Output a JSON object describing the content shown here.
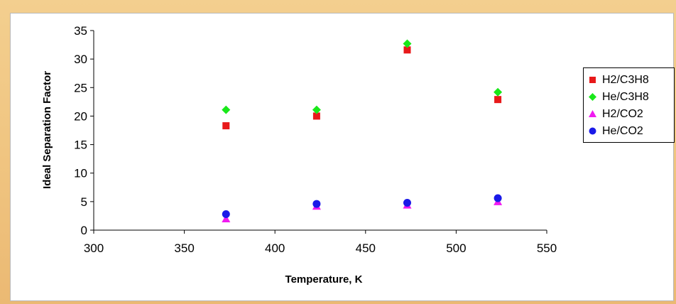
{
  "chart_data": {
    "type": "scatter",
    "title": "",
    "xlabel": "Temperature, K",
    "ylabel": "Ideal Separation Factor",
    "xlim": [
      300,
      550
    ],
    "ylim": [
      0,
      35
    ],
    "x_ticks": [
      "300",
      "350",
      "400",
      "450",
      "500",
      "550"
    ],
    "y_ticks": [
      "0",
      "5",
      "10",
      "15",
      "20",
      "25",
      "30",
      "35"
    ],
    "x_tick_values": [
      300,
      350,
      400,
      450,
      500,
      550
    ],
    "y_tick_values": [
      0,
      5,
      10,
      15,
      20,
      25,
      30,
      35
    ],
    "grid": false,
    "legend_position": "right",
    "series": [
      {
        "name": "H2/C3H8",
        "marker": "square",
        "color": "#e8191a",
        "points": [
          [
            373,
            18.3
          ],
          [
            423,
            20.0
          ],
          [
            473,
            31.6
          ],
          [
            523,
            22.9
          ]
        ]
      },
      {
        "name": "He/C3H8",
        "marker": "diamond",
        "color": "#19e81a",
        "points": [
          [
            373,
            21.1
          ],
          [
            423,
            21.1
          ],
          [
            473,
            32.7
          ],
          [
            523,
            24.2
          ]
        ]
      },
      {
        "name": "H2/CO2",
        "marker": "triangle",
        "color": "#f01af0",
        "points": [
          [
            373,
            2.0
          ],
          [
            423,
            4.2
          ],
          [
            473,
            4.4
          ],
          [
            523,
            5.0
          ]
        ]
      },
      {
        "name": "He/CO2",
        "marker": "circle",
        "color": "#1a1ae8",
        "points": [
          [
            373,
            2.8
          ],
          [
            423,
            4.6
          ],
          [
            473,
            4.8
          ],
          [
            523,
            5.6
          ]
        ]
      }
    ]
  }
}
